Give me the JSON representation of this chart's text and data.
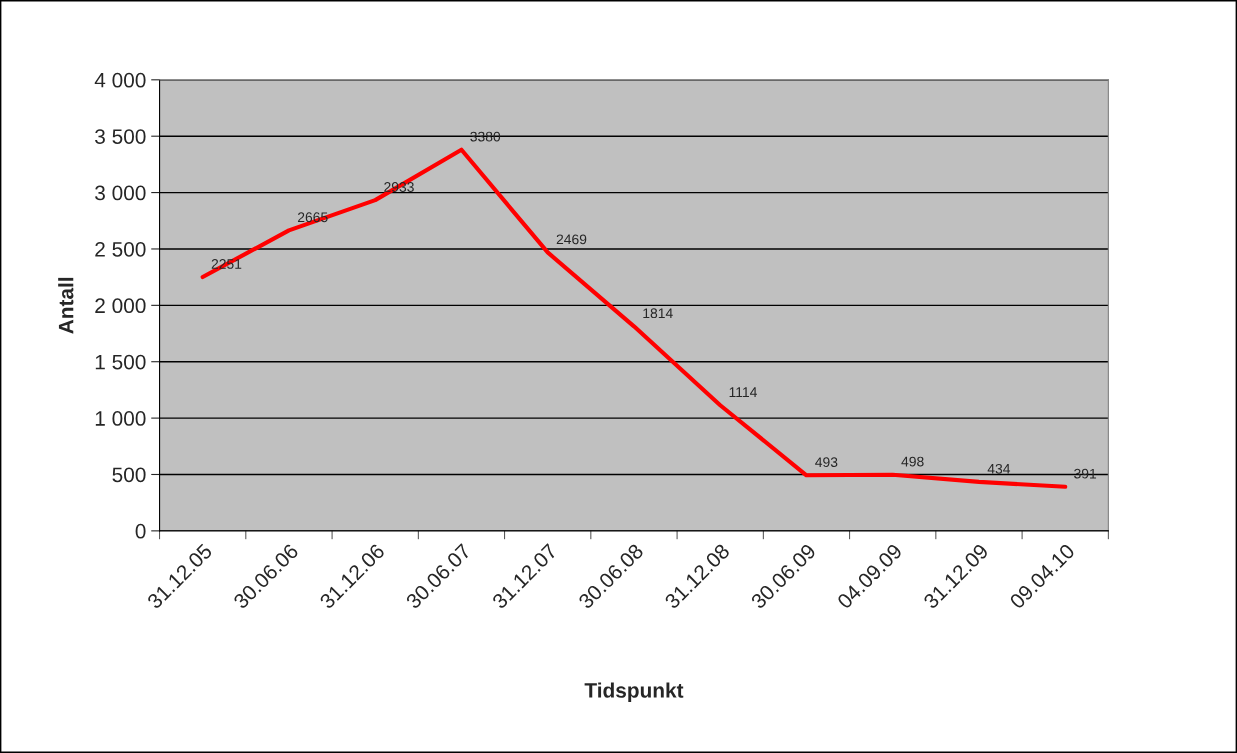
{
  "chart_data": {
    "type": "line",
    "xlabel": "Tidspunkt",
    "ylabel": "Antall",
    "categories": [
      "31.12.05",
      "30.06.06",
      "31.12.06",
      "30.06.07",
      "31.12.07",
      "30.06.08",
      "31.12.08",
      "30.06.09",
      "04.09.09",
      "31.12.09",
      "09.04.10"
    ],
    "series": [
      {
        "color": "#ff0000",
        "values": [
          2251,
          2665,
          2933,
          3380,
          2469,
          1814,
          1114,
          493,
          498,
          434,
          391
        ]
      }
    ],
    "ylim": [
      0,
      4000
    ],
    "yticks": [
      0,
      {
        "value": 500,
        "label": "500"
      },
      {
        "value": 1000,
        "label": "1 000"
      },
      {
        "value": 1500,
        "label": "1 500"
      },
      {
        "value": 2000,
        "label": "2 000"
      },
      {
        "value": 2500,
        "label": "2 500"
      },
      {
        "value": 3000,
        "label": "3 000"
      },
      {
        "value": 3500,
        "label": "3 500"
      },
      {
        "value": 4000,
        "label": "4 000"
      }
    ],
    "grid": "y",
    "legend": false,
    "marker": "none",
    "line_style": "solid",
    "data_labels": true
  }
}
